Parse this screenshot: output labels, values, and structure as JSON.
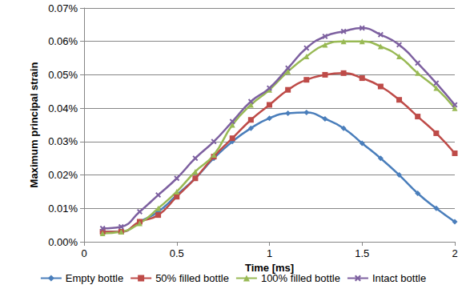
{
  "chart_data": {
    "type": "line",
    "x_label": "Time [ms]",
    "y_label": "Maximum principal strain",
    "x": [
      0.1,
      0.2,
      0.3,
      0.4,
      0.5,
      0.6,
      0.7,
      0.8,
      0.9,
      1.0,
      1.1,
      1.2,
      1.3,
      1.4,
      1.5,
      1.6,
      1.7,
      1.8,
      1.9,
      2.0
    ],
    "series": [
      {
        "name": "Empty bottle",
        "color": "#4a7ebb",
        "marker": "diamond",
        "values": [
          0.003,
          0.003,
          0.006,
          0.009,
          0.014,
          0.019,
          0.025,
          0.03,
          0.034,
          0.037,
          0.0385,
          0.0387,
          0.0368,
          0.034,
          0.0295,
          0.025,
          0.02,
          0.0145,
          0.01,
          0.006
        ]
      },
      {
        "name": "50% filled bottle",
        "color": "#be4b48",
        "marker": "square",
        "values": [
          0.003,
          0.003,
          0.006,
          0.008,
          0.0135,
          0.019,
          0.0255,
          0.031,
          0.0365,
          0.041,
          0.0455,
          0.0485,
          0.05,
          0.0505,
          0.049,
          0.0465,
          0.0425,
          0.0375,
          0.0325,
          0.0265
        ]
      },
      {
        "name": "100% filled bottle",
        "color": "#98b954",
        "marker": "triangle",
        "values": [
          0.0025,
          0.003,
          0.0055,
          0.01,
          0.015,
          0.021,
          0.026,
          0.035,
          0.041,
          0.0455,
          0.051,
          0.0555,
          0.059,
          0.06,
          0.06,
          0.0585,
          0.0555,
          0.0505,
          0.046,
          0.04
        ]
      },
      {
        "name": "Intact bottle",
        "color": "#7d60a0",
        "marker": "x",
        "values": [
          0.004,
          0.0045,
          0.009,
          0.014,
          0.019,
          0.025,
          0.03,
          0.036,
          0.042,
          0.046,
          0.052,
          0.058,
          0.0615,
          0.063,
          0.064,
          0.062,
          0.059,
          0.0535,
          0.0475,
          0.041
        ]
      }
    ],
    "xlim": [
      0,
      2
    ],
    "xticks": [
      0,
      0.5,
      1,
      1.5,
      2
    ],
    "ylim": [
      0,
      0.07
    ],
    "yticks": [
      {
        "value": 0,
        "label": "0.00%"
      },
      {
        "value": 0.01,
        "label": "0.01%"
      },
      {
        "value": 0.02,
        "label": "0.02%"
      },
      {
        "value": 0.03,
        "label": "0.03%"
      },
      {
        "value": 0.04,
        "label": "0.04%"
      },
      {
        "value": 0.05,
        "label": "0.05%"
      },
      {
        "value": 0.06,
        "label": "0.06%"
      },
      {
        "value": 0.07,
        "label": "0.07%"
      }
    ],
    "grid": true,
    "legend": "bottom",
    "line_style": "smooth"
  }
}
